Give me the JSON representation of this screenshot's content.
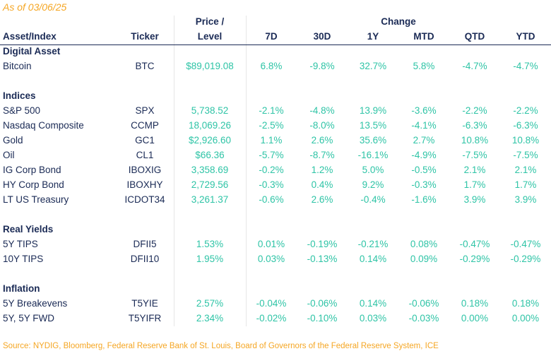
{
  "as_of": "As of 03/06/25",
  "headers": {
    "asset": "Asset/Index",
    "ticker": "Ticker",
    "price_line1": "Price /",
    "price_line2": "Level",
    "change": "Change",
    "periods": [
      "7D",
      "30D",
      "1Y",
      "MTD",
      "QTD",
      "YTD"
    ]
  },
  "sections": [
    {
      "title": "Digital Asset",
      "rows": [
        {
          "name": "Bitcoin",
          "ticker": "BTC",
          "price": "$89,019.08",
          "changes": [
            "6.8%",
            "-9.8%",
            "32.7%",
            "5.8%",
            "-4.7%",
            "-4.7%"
          ]
        }
      ]
    },
    {
      "title": "Indices",
      "rows": [
        {
          "name": "S&P 500",
          "ticker": "SPX",
          "price": "5,738.52",
          "changes": [
            "-2.1%",
            "-4.8%",
            "13.9%",
            "-3.6%",
            "-2.2%",
            "-2.2%"
          ]
        },
        {
          "name": "Nasdaq Composite",
          "ticker": "CCMP",
          "price": "18,069.26",
          "changes": [
            "-2.5%",
            "-8.0%",
            "13.5%",
            "-4.1%",
            "-6.3%",
            "-6.3%"
          ]
        },
        {
          "name": "Gold",
          "ticker": "GC1",
          "price": "$2,926.60",
          "changes": [
            "1.1%",
            "2.6%",
            "35.6%",
            "2.7%",
            "10.8%",
            "10.8%"
          ]
        },
        {
          "name": "Oil",
          "ticker": "CL1",
          "price": "$66.36",
          "changes": [
            "-5.7%",
            "-8.7%",
            "-16.1%",
            "-4.9%",
            "-7.5%",
            "-7.5%"
          ]
        },
        {
          "name": "IG Corp Bond",
          "ticker": "IBOXIG",
          "price": "3,358.69",
          "changes": [
            "-0.2%",
            "1.2%",
            "5.0%",
            "-0.5%",
            "2.1%",
            "2.1%"
          ]
        },
        {
          "name": "HY Corp Bond",
          "ticker": "IBOXHY",
          "price": "2,729.56",
          "changes": [
            "-0.3%",
            "0.4%",
            "9.2%",
            "-0.3%",
            "1.7%",
            "1.7%"
          ]
        },
        {
          "name": "LT US Treasury",
          "ticker": "ICDOT34",
          "price": "3,261.37",
          "changes": [
            "-0.6%",
            "2.6%",
            "-0.4%",
            "-1.6%",
            "3.9%",
            "3.9%"
          ]
        }
      ]
    },
    {
      "title": "Real Yields",
      "rows": [
        {
          "name": "5Y TIPS",
          "ticker": "DFII5",
          "price": "1.53%",
          "changes": [
            "0.01%",
            "-0.19%",
            "-0.21%",
            "0.08%",
            "-0.47%",
            "-0.47%"
          ]
        },
        {
          "name": "10Y TIPS",
          "ticker": "DFII10",
          "price": "1.95%",
          "changes": [
            "0.03%",
            "-0.13%",
            "0.14%",
            "0.09%",
            "-0.29%",
            "-0.29%"
          ]
        }
      ]
    },
    {
      "title": "Inflation",
      "rows": [
        {
          "name": "5Y Breakevens",
          "ticker": "T5YIE",
          "price": "2.57%",
          "changes": [
            "-0.04%",
            "-0.06%",
            "0.14%",
            "-0.06%",
            "0.18%",
            "0.18%"
          ]
        },
        {
          "name": "5Y, 5Y FWD",
          "ticker": "T5YIFR",
          "price": "2.34%",
          "changes": [
            "-0.02%",
            "-0.10%",
            "0.03%",
            "-0.03%",
            "0.00%",
            "0.00%"
          ]
        }
      ]
    }
  ],
  "source": "Source: NYDIG, Bloomberg, Federal Reserve Bank of St. Louis, Board of Governors of the Federal Reserve System, ICE",
  "colors": {
    "accent": "#f5a623",
    "navy": "#1a2a55",
    "teal": "#2ec4a6"
  }
}
